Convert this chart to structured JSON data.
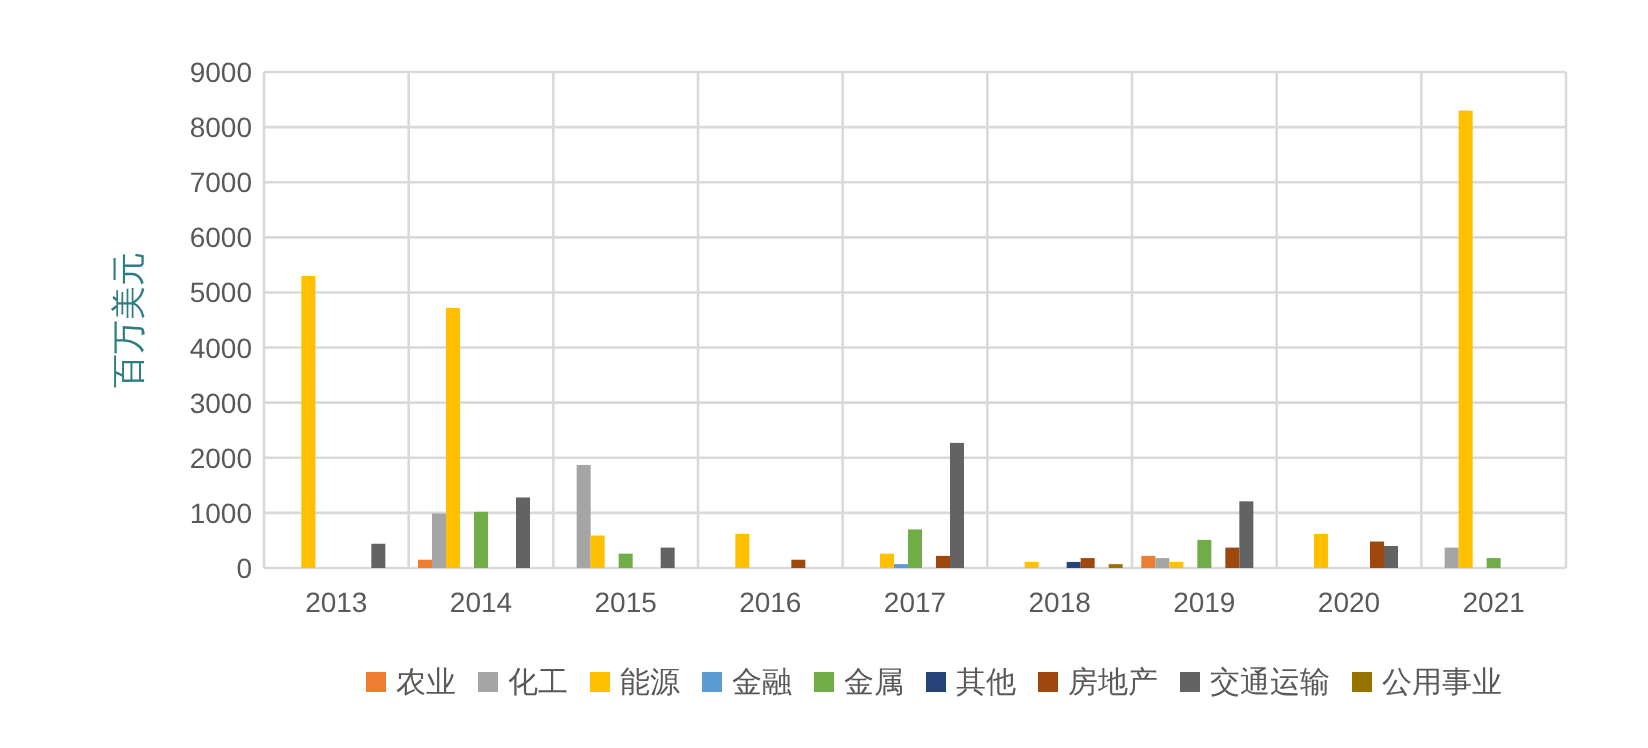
{
  "chart_data": {
    "type": "bar",
    "ylabel": "百万美元",
    "categories": [
      "2013",
      "2014",
      "2015",
      "2016",
      "2017",
      "2018",
      "2019",
      "2020",
      "2021"
    ],
    "series": [
      {
        "name": "农业",
        "color": "#ed7d31",
        "values": [
          null,
          150,
          null,
          null,
          null,
          null,
          220,
          null,
          null
        ]
      },
      {
        "name": "化工",
        "color": "#a5a5a5",
        "values": [
          null,
          990,
          1870,
          null,
          null,
          null,
          180,
          null,
          370
        ]
      },
      {
        "name": "能源",
        "color": "#ffc000",
        "values": [
          5300,
          4720,
          590,
          620,
          260,
          110,
          110,
          620,
          8300
        ]
      },
      {
        "name": "金融",
        "color": "#5b9bd5",
        "values": [
          null,
          null,
          null,
          null,
          70,
          null,
          null,
          null,
          null
        ]
      },
      {
        "name": "金属",
        "color": "#70ad47",
        "values": [
          null,
          1020,
          260,
          null,
          700,
          null,
          510,
          null,
          180
        ]
      },
      {
        "name": "其他",
        "color": "#264478",
        "values": [
          null,
          null,
          null,
          null,
          null,
          110,
          null,
          null,
          null
        ]
      },
      {
        "name": "房地产",
        "color": "#9e480e",
        "values": [
          null,
          null,
          null,
          150,
          220,
          180,
          370,
          480,
          null
        ]
      },
      {
        "name": "交通运输",
        "color": "#636363",
        "values": [
          440,
          1280,
          370,
          null,
          2270,
          null,
          1210,
          400,
          null
        ]
      },
      {
        "name": "公用事业",
        "color": "#997300",
        "values": [
          null,
          null,
          null,
          null,
          null,
          70,
          null,
          null,
          null
        ]
      }
    ],
    "ylim": [
      0,
      9000
    ],
    "yticks": [
      0,
      1000,
      2000,
      3000,
      4000,
      5000,
      6000,
      7000,
      8000,
      9000
    ],
    "grid": true,
    "legend": "bottom"
  }
}
